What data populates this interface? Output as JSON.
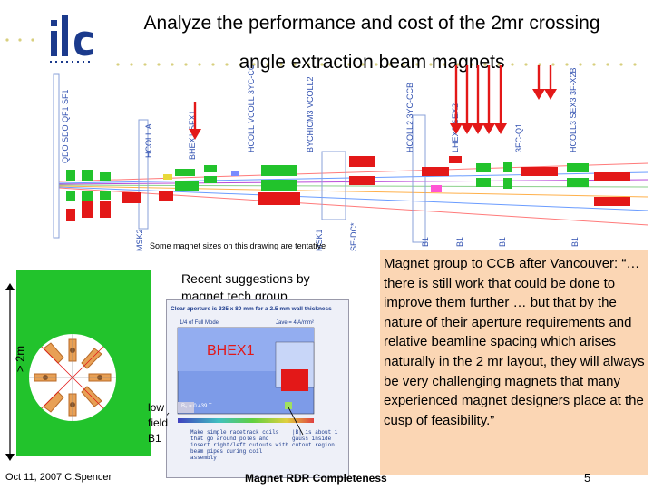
{
  "title": {
    "line1": "Analyze the performance and cost of the 2mr crossing",
    "line2": "angle extraction beam magnets"
  },
  "logo": {
    "text": "ilc",
    "icon": "ilc-logo"
  },
  "beamline_labels": {
    "top": [
      "QDO SDO QF1 SF1",
      "HCOLL A",
      "BHEX1 SFX1",
      "HCOLL VCOLL 3YC-CCB",
      "BYCHICM3 VCOLL2",
      "HCOLL2 3YC-CCB",
      "LHEX2 SEX2",
      "3FC-Q1",
      "HCOLL3 SEX3 3F-X2B 3YIN1"
    ],
    "bottom": [
      "MSK2",
      "MSK1",
      "SE-DC*",
      "B1",
      "B1",
      "B1",
      "B1"
    ]
  },
  "tentative_note": "Some magnet sizes on this drawing are tentative",
  "recent_note": "Recent suggestions by magnet tech group",
  "fieldmap": {
    "size_label": "> 2m"
  },
  "plot": {
    "header1": "Clear aperture is 335 x 80 mm for a 2.5 mm wall thickness",
    "header2": "1/4 of Full Model",
    "current_density": "Jave = 4 A/mm²",
    "bhex_label": "BHEX1",
    "field_label": "B₀ = 0.439 T",
    "note_left": "Make simple racetrack coils that go around poles and insert right/left cutouts with beam pipes during coil assembly",
    "note_right": "|B| is about 1 gauss inside cutout region"
  },
  "low_field": {
    "line1": "low",
    "line2": "field",
    "line3": "B1"
  },
  "quote": {
    "text": "Magnet group to CCB after Vancouver: “…there is still work that could be done to improve them further … but that by the nature of their aperture requirements and relative beamline spacing which arises naturally in the 2 mr layout, they will always be very challenging magnets that many experienced magnet designers place at the cusp of feasibility.”"
  },
  "footer": {
    "date_author": "Oct 11, 2007  C.Spencer",
    "center": "Magnet RDR Completeness",
    "page": "5"
  },
  "colors": {
    "quote_bg": "#fbd6b4",
    "magnet_green": "#22c32c",
    "magnet_red": "#e31818",
    "arrow_red": "#e31818"
  }
}
